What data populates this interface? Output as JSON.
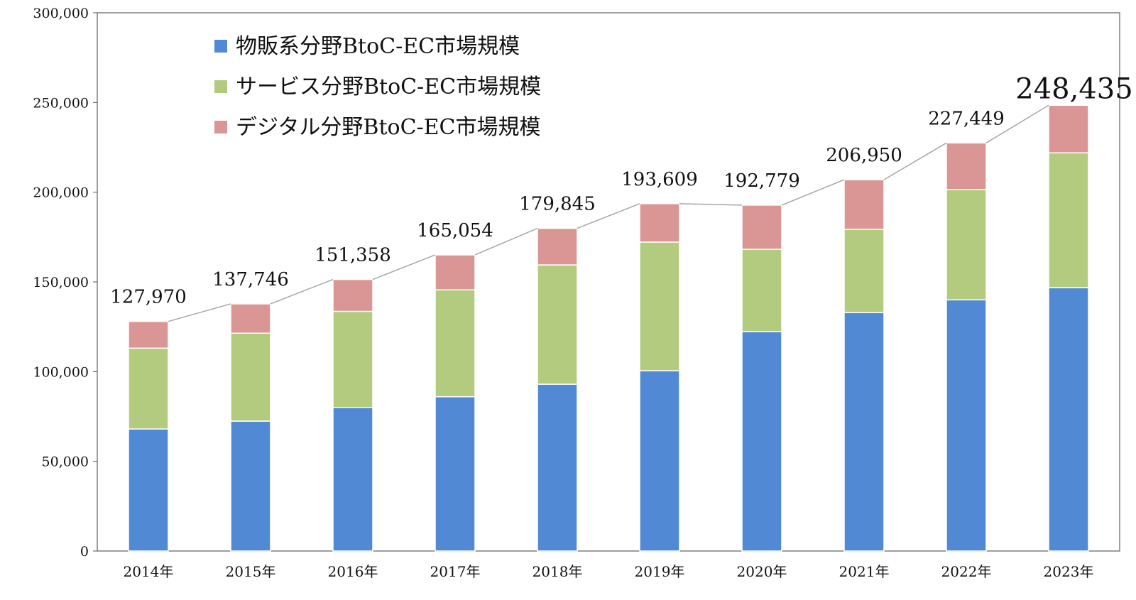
{
  "chart_data": {
    "type": "bar",
    "stacked": true,
    "categories": [
      "2014年",
      "2015年",
      "2016年",
      "2017年",
      "2018年",
      "2019年",
      "2020年",
      "2021年",
      "2022年",
      "2023年"
    ],
    "series": [
      {
        "name": "物販系分野BtoC-EC市場規模",
        "color": "#5289d4",
        "values": [
          68043,
          72398,
          80043,
          86008,
          92992,
          100515,
          122333,
          132865,
          139997,
          146760
        ]
      },
      {
        "name": "サービス分野BtoC-EC市場規模",
        "color": "#b2cb7e",
        "values": [
          45024,
          49014,
          53532,
          59568,
          66471,
          71672,
          45832,
          46424,
          61477,
          75169
        ]
      },
      {
        "name": "デジタル分野BtoC-EC市場規模",
        "color": "#da9694",
        "values": [
          14903,
          16334,
          17783,
          19478,
          20382,
          21422,
          24614,
          27661,
          25975,
          26506
        ]
      }
    ],
    "totals": [
      127970,
      137746,
      151358,
      165054,
      179845,
      193609,
      192779,
      206950,
      227449,
      248435
    ],
    "total_labels": [
      "127,970",
      "137,746",
      "151,358",
      "165,054",
      "179,845",
      "193,609",
      "192,779",
      "206,950",
      "227,449",
      "248,435"
    ],
    "y_ticks": [
      0,
      50000,
      100000,
      150000,
      200000,
      250000,
      300000
    ],
    "y_tick_labels": [
      "0",
      "50,000",
      "100,000",
      "150,000",
      "200,000",
      "250,000",
      "300,000"
    ],
    "ylim": [
      0,
      300000
    ],
    "legend_position": "top-left",
    "title": "",
    "xlabel": "",
    "ylabel": "",
    "colors": {
      "line": "#a6a6a6",
      "border": "#7f7f7f",
      "axis": "#555555"
    }
  }
}
